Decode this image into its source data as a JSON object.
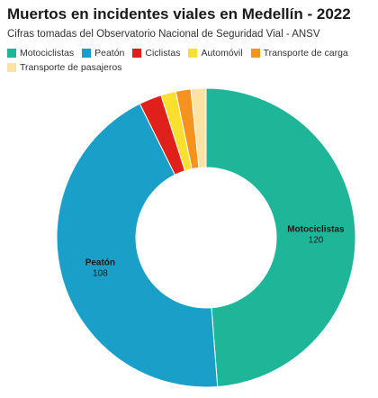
{
  "title": "Muertos en incidentes viales en Medellín - 2022",
  "subtitle": "Cifras tomadas del Observatorio Nacional de Seguridad Vial - ANSV",
  "chart_data": {
    "type": "pie",
    "style": "donut",
    "title": "Muertos en incidentes viales en Medellín - 2022",
    "subtitle": "Cifras tomadas del Observatorio Nacional de Seguridad Vial - ANSV",
    "legend_position": "top-left",
    "series": [
      {
        "name": "Motociclistas",
        "value": 120,
        "color": "#1fb598",
        "show_label": true
      },
      {
        "name": "Peatón",
        "value": 108,
        "color": "#1a9fc9",
        "show_label": true
      },
      {
        "name": "Ciclistas",
        "value": 6,
        "color": "#e0201b",
        "show_label": false
      },
      {
        "name": "Automóvil",
        "value": 4,
        "color": "#f9e02f",
        "show_label": false
      },
      {
        "name": "Transporte de carga",
        "value": 4,
        "color": "#f6931e",
        "show_label": false
      },
      {
        "name": "Transporte de pasajeros",
        "value": 4,
        "color": "#fce3a4",
        "show_label": false
      }
    ]
  }
}
